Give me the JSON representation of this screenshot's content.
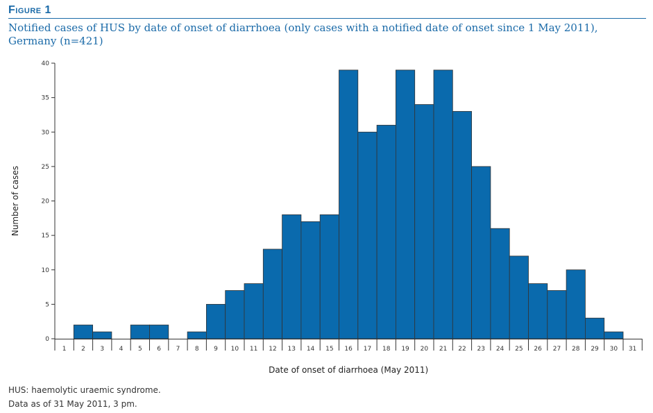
{
  "figure": {
    "label": "Figure 1",
    "title": "Notified cases of HUS by date of onset of diarrhoea (only cases with a notified date of onset since 1 May 2011), Germany (n=421)"
  },
  "footnotes": [
    "HUS: haemolytic uraemic syndrome.",
    "Data as of 31 May 2011, 3 pm."
  ],
  "colors": {
    "bar": "#0a6aad",
    "accent": "#1a6aa8"
  },
  "chart_data": {
    "type": "bar",
    "categories": [
      "1",
      "2",
      "3",
      "4",
      "5",
      "6",
      "7",
      "8",
      "9",
      "10",
      "11",
      "12",
      "13",
      "14",
      "15",
      "16",
      "17",
      "18",
      "19",
      "20",
      "21",
      "22",
      "23",
      "24",
      "25",
      "26",
      "27",
      "28",
      "29",
      "30",
      "31"
    ],
    "values": [
      0,
      2,
      1,
      0,
      2,
      2,
      0,
      1,
      5,
      7,
      8,
      13,
      18,
      17,
      18,
      39,
      30,
      31,
      39,
      34,
      39,
      33,
      25,
      16,
      12,
      8,
      7,
      10,
      3,
      1,
      0
    ],
    "xlabel": "Date of onset of diarrhoea (May 2011)",
    "ylabel": "Number of cases",
    "ylim": [
      0,
      40
    ],
    "yticks": [
      0,
      5,
      10,
      15,
      20,
      25,
      30,
      35,
      40
    ],
    "grid": false,
    "legend": "none"
  }
}
